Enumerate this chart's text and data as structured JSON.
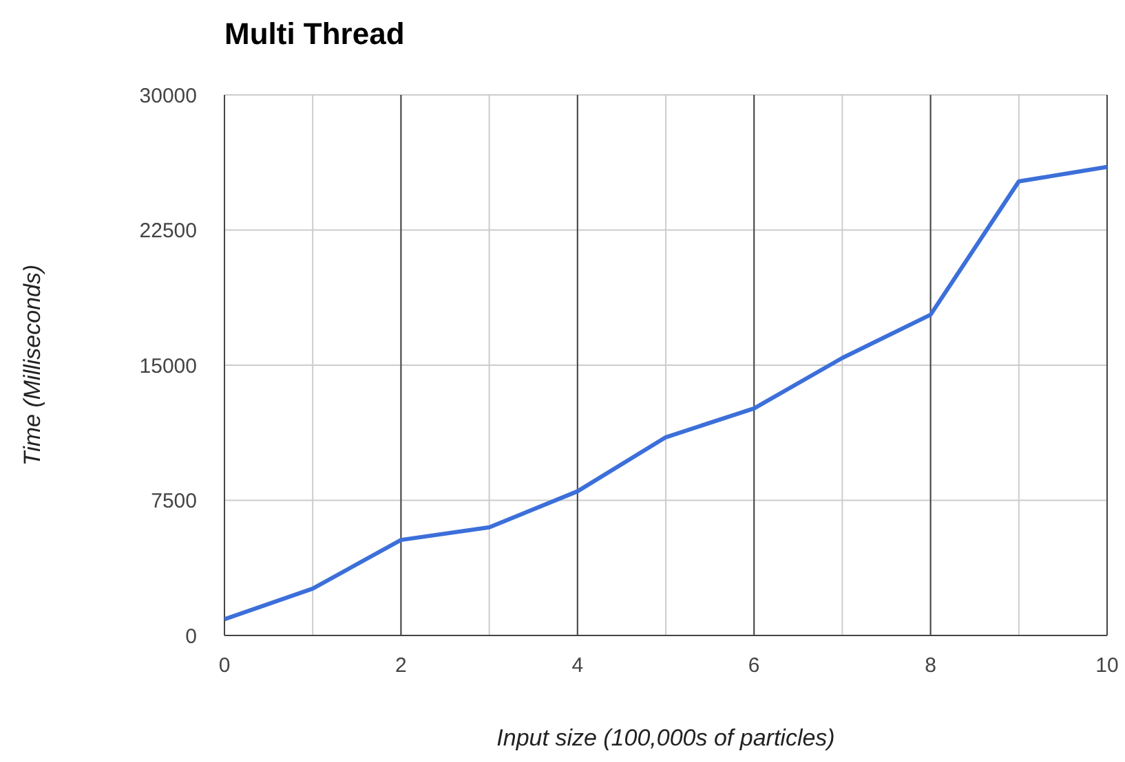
{
  "chart_data": {
    "type": "line",
    "title": "Multi Thread",
    "xlabel": "Input size (100,000s of particles)",
    "ylabel": "Time (Milliseconds)",
    "x": [
      0,
      1,
      2,
      3,
      4,
      5,
      6,
      7,
      8,
      9,
      10
    ],
    "series": [
      {
        "color": "#3c6fd9",
        "values": [
          900,
          2600,
          5300,
          6000,
          8000,
          11000,
          12600,
          15400,
          17800,
          25200,
          26000
        ]
      }
    ],
    "xlim": [
      0,
      10
    ],
    "xticks": [
      0,
      {
        "value": 1,
        "label": null
      },
      2,
      {
        "value": 3,
        "label": null
      },
      4,
      {
        "value": 5,
        "label": null
      },
      6,
      {
        "value": 7,
        "label": null
      },
      8,
      {
        "value": 9,
        "label": null
      },
      10
    ],
    "ylim": [
      0,
      30000
    ],
    "yticks": [
      0,
      7500,
      15000,
      22500,
      30000
    ],
    "grid": true,
    "marker": "none",
    "line_style": "solid"
  }
}
